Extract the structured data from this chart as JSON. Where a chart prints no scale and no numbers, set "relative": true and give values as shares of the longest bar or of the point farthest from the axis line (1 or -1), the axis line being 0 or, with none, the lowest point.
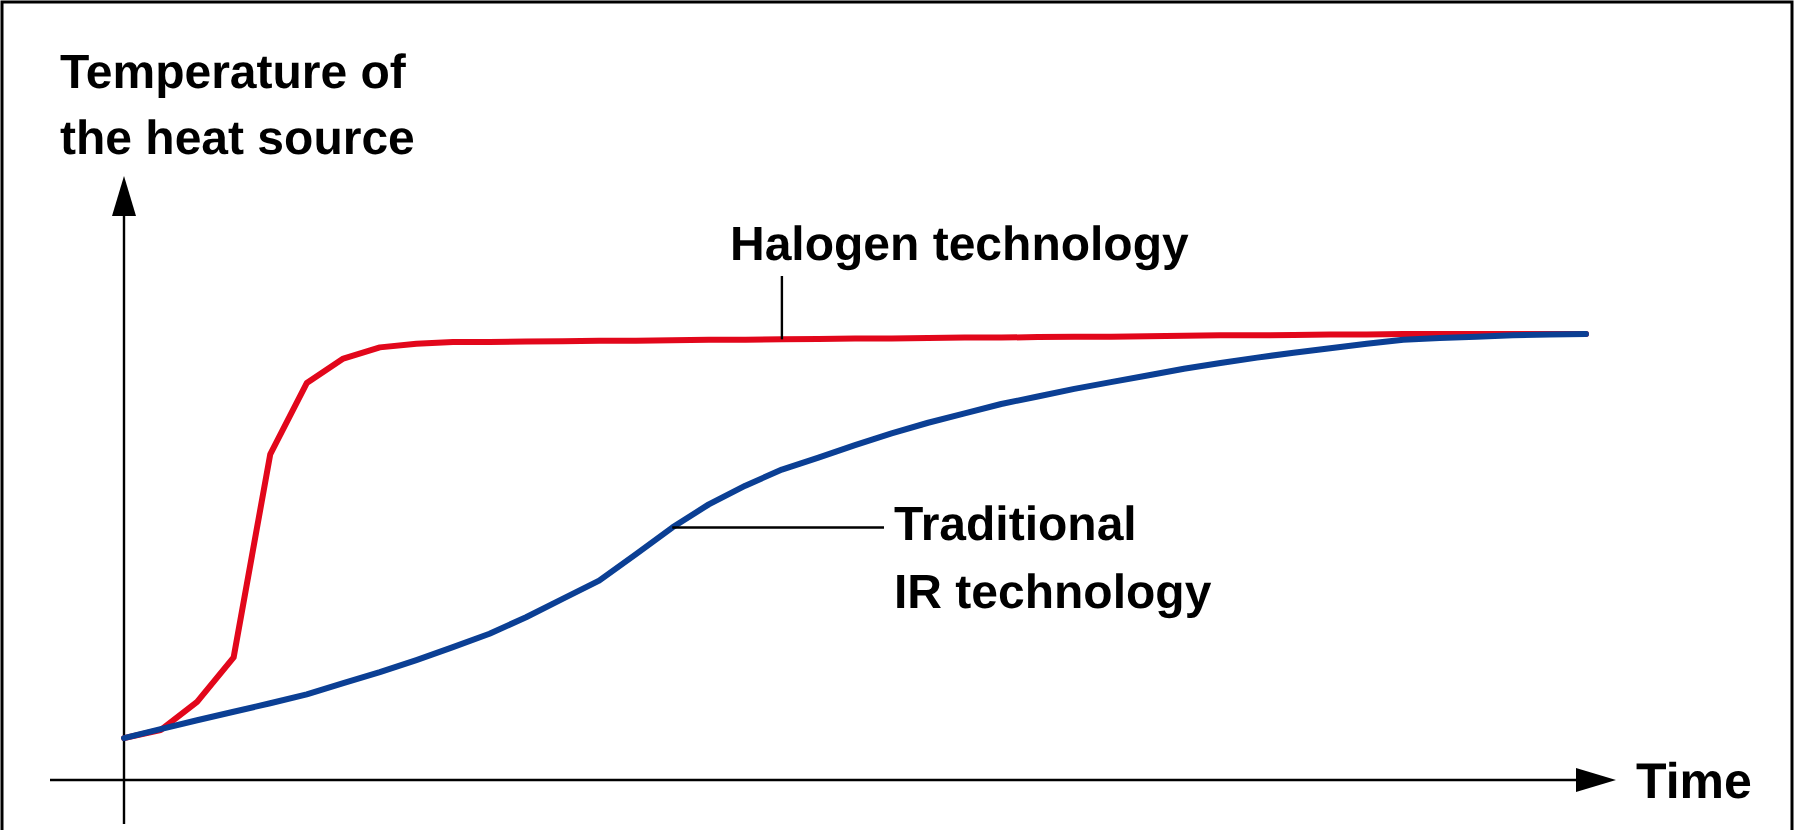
{
  "chart_data": {
    "type": "line",
    "relative": true,
    "xlabel": "Time",
    "ylabel": "Temperature of the heat source",
    "marker": "none",
    "line_style": "solid",
    "categories": [
      null,
      null,
      null,
      null,
      null,
      null,
      null,
      null,
      null,
      null,
      null,
      null,
      null,
      null,
      null,
      null,
      null,
      null,
      null,
      null,
      null,
      null,
      null,
      null,
      null,
      null,
      null,
      null,
      null,
      null,
      null,
      null,
      null,
      null,
      null,
      null,
      null,
      null,
      null,
      null,
      null
    ],
    "series": [
      {
        "name": "Halogen technology",
        "color": "#e2071b",
        "values": [
          0.094,
          0.112,
          0.175,
          0.275,
          0.73,
          0.89,
          0.945,
          0.97,
          0.978,
          0.982,
          0.982,
          0.983,
          0.984,
          0.985,
          0.985,
          0.986,
          0.987,
          0.987,
          0.988,
          0.989,
          0.99,
          0.99,
          0.991,
          0.992,
          0.992,
          0.993,
          0.994,
          0.994,
          0.995,
          0.996,
          0.997,
          0.997,
          0.998,
          0.999,
          0.999,
          1,
          1,
          1,
          1,
          1,
          1
        ]
      },
      {
        "name": "Traditional IR technology",
        "color": "#0b3f94",
        "values": [
          0.094,
          0.114,
          0.134,
          0.153,
          0.172,
          0.192,
          0.217,
          0.242,
          0.269,
          0.298,
          0.328,
          0.365,
          0.406,
          0.447,
          0.506,
          0.566,
          0.618,
          0.66,
          0.696,
          0.723,
          0.751,
          0.777,
          0.801,
          0.822,
          0.843,
          0.86,
          0.877,
          0.892,
          0.907,
          0.922,
          0.935,
          0.947,
          0.958,
          0.968,
          0.978,
          0.987,
          0.991,
          0.994,
          0.997,
          0.999,
          1
        ]
      }
    ]
  }
}
